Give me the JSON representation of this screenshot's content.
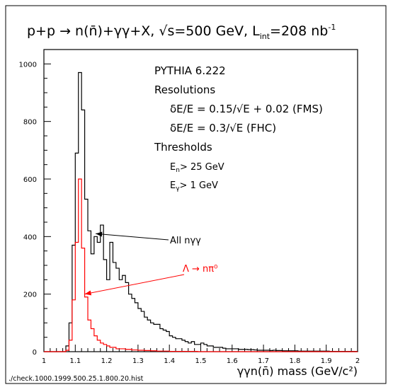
{
  "chart_data": {
    "type": "histogram",
    "title": "p+p → n(n̄)+γγ+X, √s=500 GeV, L",
    "title_sub": "int",
    "title_tail": "=208 nb",
    "title_sup": "-1",
    "xlabel": "γγn(n̄) mass (GeV/c²)",
    "footer": "./check.1000.1999.500.25.1.800.20.hist",
    "xlim": [
      1,
      2
    ],
    "ylim": [
      0,
      1050
    ],
    "x_ticks": [
      1,
      1.1,
      1.2,
      1.3,
      1.4,
      1.5,
      1.6,
      1.7,
      1.8,
      1.9,
      2
    ],
    "y_ticks": [
      0,
      200,
      400,
      600,
      800,
      1000
    ],
    "bin_edges_start": 1.0,
    "bin_width": 0.01,
    "series": [
      {
        "name": "All nγγ",
        "color": "#000000",
        "values": [
          0,
          0,
          0,
          0,
          0,
          0,
          0,
          20,
          100,
          370,
          690,
          970,
          840,
          530,
          420,
          340,
          400,
          380,
          440,
          320,
          250,
          380,
          310,
          290,
          250,
          265,
          240,
          200,
          185,
          170,
          150,
          140,
          120,
          110,
          100,
          95,
          95,
          80,
          75,
          70,
          55,
          50,
          45,
          45,
          40,
          35,
          30,
          35,
          25,
          25,
          30,
          25,
          20,
          20,
          15,
          15,
          15,
          12,
          10,
          10,
          10,
          10,
          8,
          8,
          8,
          7,
          7,
          6,
          5,
          5,
          5,
          5,
          4,
          5,
          4,
          4,
          3,
          3,
          3,
          3,
          3,
          2,
          2,
          2,
          2,
          2,
          2,
          2,
          2,
          2,
          2,
          1,
          1,
          1,
          1,
          1,
          1,
          1,
          1,
          1
        ]
      },
      {
        "name": "Λ → nπ⁰",
        "color": "#ff0000",
        "values": [
          0,
          0,
          0,
          0,
          0,
          0,
          0,
          5,
          40,
          180,
          380,
          600,
          360,
          190,
          110,
          80,
          55,
          40,
          30,
          25,
          20,
          15,
          15,
          10,
          10,
          10,
          8,
          8,
          6,
          6,
          5,
          5,
          4,
          4,
          3,
          3,
          2,
          2,
          2,
          2,
          1,
          1,
          1,
          1,
          1,
          1,
          1,
          1,
          1,
          0,
          0,
          0,
          0,
          0,
          0,
          0,
          0,
          0,
          0,
          0,
          0,
          0,
          0,
          0,
          0,
          0,
          0,
          0,
          0,
          0,
          0,
          0,
          0,
          0,
          0,
          0,
          0,
          0,
          0,
          0,
          0,
          0,
          0,
          0,
          0,
          0,
          0,
          0,
          0,
          0,
          0,
          0,
          0,
          0,
          0,
          0,
          0,
          0,
          0,
          0
        ]
      }
    ],
    "info_lines": [
      "PYTHIA 6.222",
      "Resolutions",
      "δE/E = 0.15/√E + 0.02 (FMS)",
      "δE/E = 0.3/√E (FHC)",
      "Thresholds"
    ],
    "threshold_n": {
      "label": "E",
      "sub": "n",
      "tail": "> 25 GeV"
    },
    "threshold_g": {
      "label": "E",
      "sub": "γ",
      "tail": "> 1 GeV"
    },
    "annotations": [
      {
        "text": "All nγγ",
        "color": "#000000",
        "arrow_to": [
          1.165,
          410
        ]
      },
      {
        "text": "Λ → nπ⁰",
        "color": "#ff0000",
        "arrow_to": [
          1.13,
          200
        ]
      }
    ]
  }
}
